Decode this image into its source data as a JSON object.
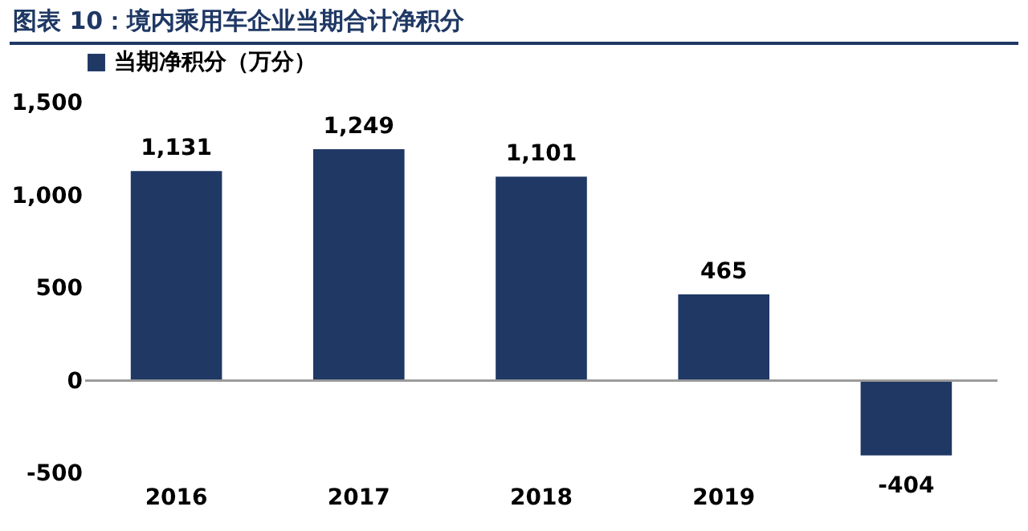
{
  "chart_data": {
    "type": "bar",
    "title": "图表 10：境内乘用车企业当期合计净积分",
    "categories": [
      "2016",
      "2017",
      "2018",
      "2019",
      null
    ],
    "series": [
      {
        "name": "当期净积分（万分）",
        "color": "#1f3864",
        "values": [
          1131,
          1249,
          1101,
          465,
          -404
        ],
        "value_labels": [
          "1,131",
          "1,249",
          "1,101",
          "465",
          "-404"
        ]
      }
    ],
    "ylim": [
      -500,
      1500
    ],
    "yticks": [
      {
        "value": -500,
        "label": "-500"
      },
      0,
      {
        "value": 500,
        "label": "500"
      },
      {
        "value": 1000,
        "label": "1,000"
      },
      {
        "value": 1500,
        "label": "1,500"
      }
    ],
    "legend": "top"
  }
}
